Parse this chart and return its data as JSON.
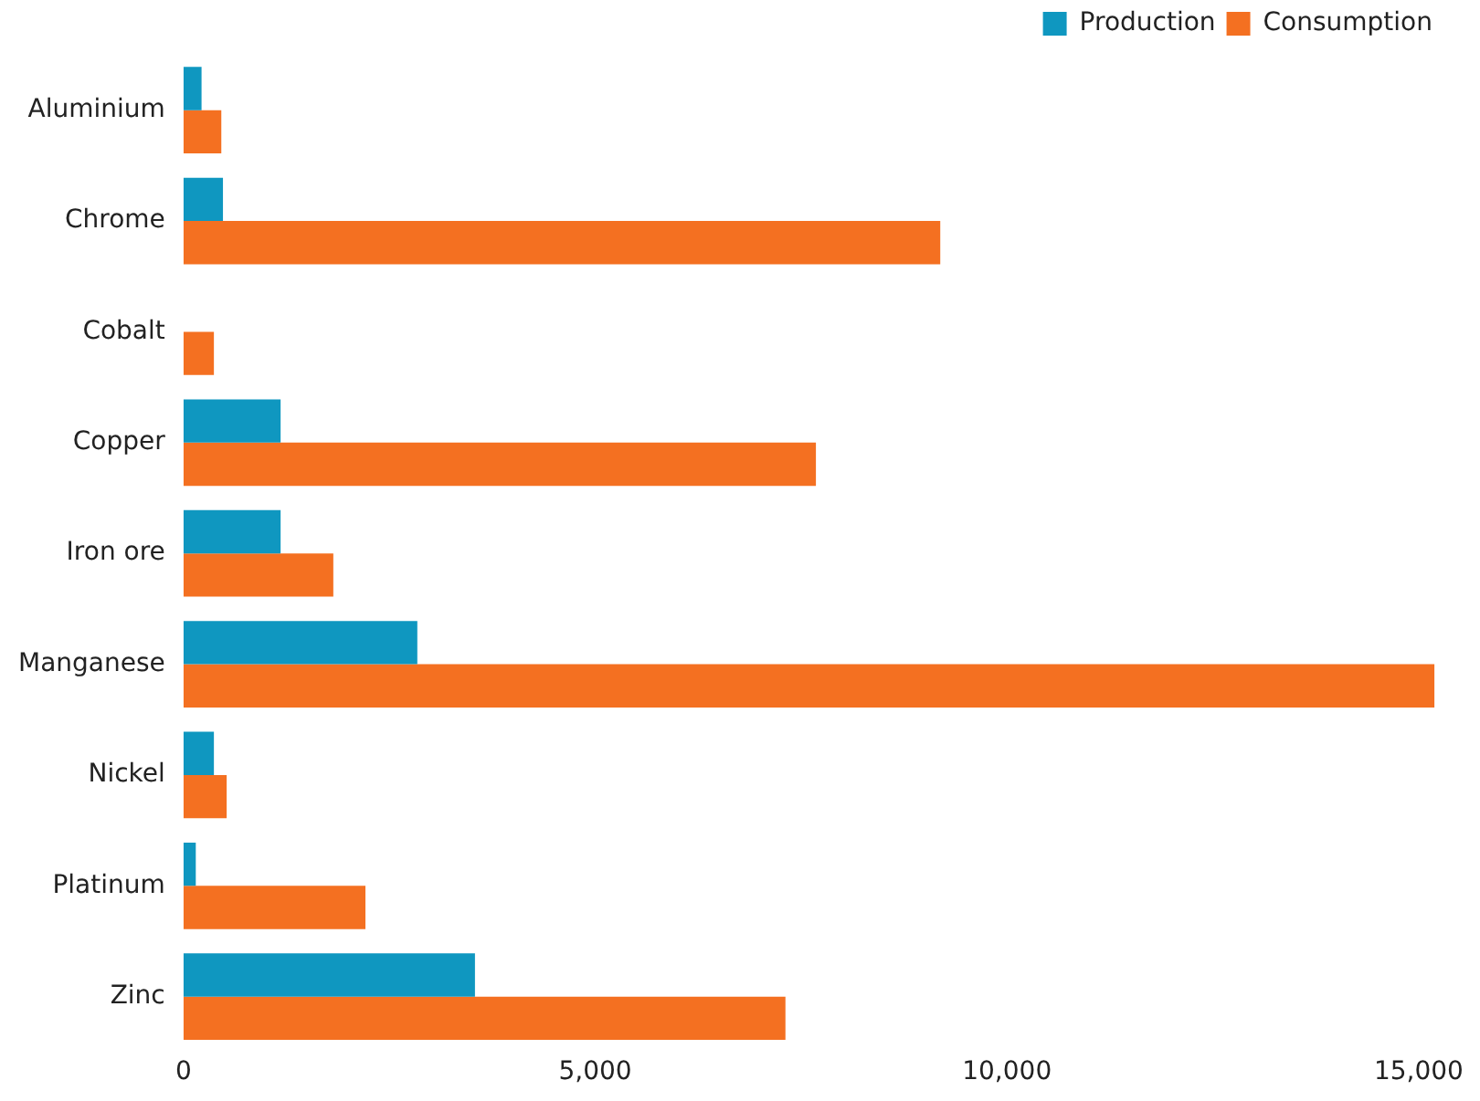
{
  "chart_data": {
    "type": "bar",
    "orientation": "horizontal",
    "categories": [
      "Aluminium",
      "Chrome",
      "Cobalt",
      "Copper",
      "Iron ore",
      "Manganese",
      "Nickel",
      "Platinum",
      "Zinc"
    ],
    "series": [
      {
        "name": "Production",
        "color": "#0f97c0",
        "values": [
          220,
          480,
          0,
          1180,
          1180,
          2840,
          370,
          150,
          3540
        ]
      },
      {
        "name": "Consumption",
        "color": "#f47021",
        "values": [
          460,
          9190,
          370,
          7680,
          1820,
          15190,
          525,
          2210,
          7310
        ]
      }
    ],
    "xlim": [
      0,
      15300
    ],
    "xticks": [
      0,
      {
        "value": 5000,
        "label": "5,000"
      },
      {
        "value": 10000,
        "label": "10,000"
      },
      {
        "value": 15000,
        "label": "15,000"
      }
    ],
    "grid": false,
    "legend": "top right"
  }
}
